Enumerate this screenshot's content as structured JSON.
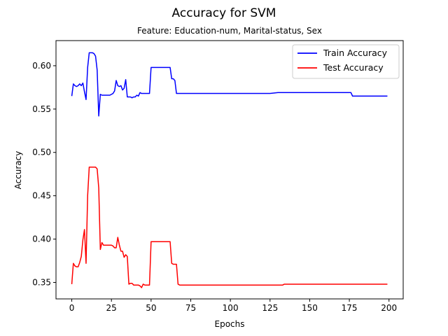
{
  "chart_data": {
    "type": "line",
    "title": "Accuracy for SVM",
    "subtitle": "Feature: Education-num, Marital-status, Sex",
    "xlabel": "Epochs",
    "ylabel": "Accuracy",
    "xlim": [
      -9.95,
      208.95
    ],
    "ylim": [
      0.331,
      0.629
    ],
    "xticks": [
      0,
      25,
      50,
      75,
      100,
      125,
      150,
      175,
      200
    ],
    "yticks": [
      0.35,
      0.4,
      0.45,
      0.5,
      0.55,
      0.6
    ],
    "ytick_labels": [
      "0.35",
      "0.40",
      "0.45",
      "0.50",
      "0.55",
      "0.60"
    ],
    "grid": false,
    "legend": "top-right",
    "series": [
      {
        "name": "Train Accuracy",
        "color": "#0000ff",
        "x": [
          0,
          1,
          2,
          3,
          4,
          5,
          6,
          7,
          8,
          9,
          10,
          11,
          12,
          13,
          14,
          15,
          16,
          17,
          18,
          19,
          20,
          21,
          22,
          23,
          24,
          25,
          26,
          27,
          28,
          29,
          30,
          31,
          32,
          33,
          34,
          35,
          36,
          37,
          38,
          39,
          40,
          41,
          42,
          43,
          44,
          45,
          46,
          47,
          48,
          49,
          50,
          51,
          52,
          53,
          54,
          55,
          56,
          57,
          58,
          59,
          60,
          61,
          62,
          63,
          64,
          65,
          66,
          67,
          68,
          70,
          75,
          80,
          90,
          100,
          110,
          115,
          120,
          125,
          130,
          135,
          140,
          150,
          160,
          170,
          175,
          176,
          177,
          180,
          190,
          199
        ],
        "values": [
          0.565,
          0.579,
          0.577,
          0.576,
          0.577,
          0.579,
          0.577,
          0.58,
          0.57,
          0.561,
          0.598,
          0.615,
          0.615,
          0.615,
          0.614,
          0.611,
          0.595,
          0.542,
          0.567,
          0.566,
          0.566,
          0.566,
          0.566,
          0.566,
          0.566,
          0.567,
          0.568,
          0.571,
          0.583,
          0.577,
          0.576,
          0.577,
          0.572,
          0.574,
          0.584,
          0.564,
          0.564,
          0.564,
          0.563,
          0.564,
          0.564,
          0.566,
          0.565,
          0.569,
          0.568,
          0.568,
          0.568,
          0.568,
          0.568,
          0.568,
          0.598,
          0.598,
          0.598,
          0.598,
          0.598,
          0.598,
          0.598,
          0.598,
          0.598,
          0.598,
          0.598,
          0.598,
          0.598,
          0.585,
          0.585,
          0.583,
          0.568,
          0.568,
          0.568,
          0.568,
          0.568,
          0.568,
          0.568,
          0.568,
          0.568,
          0.568,
          0.568,
          0.568,
          0.569,
          0.569,
          0.569,
          0.569,
          0.569,
          0.569,
          0.569,
          0.569,
          0.565,
          0.565,
          0.565,
          0.565
        ]
      },
      {
        "name": "Test Accuracy",
        "color": "#ff0000",
        "x": [
          0,
          1,
          2,
          3,
          4,
          5,
          6,
          7,
          8,
          9,
          10,
          11,
          12,
          13,
          14,
          15,
          16,
          17,
          18,
          19,
          20,
          21,
          22,
          23,
          24,
          25,
          26,
          27,
          28,
          29,
          30,
          31,
          32,
          33,
          34,
          35,
          36,
          37,
          38,
          39,
          40,
          41,
          42,
          43,
          44,
          45,
          46,
          47,
          48,
          49,
          50,
          51,
          52,
          53,
          54,
          55,
          56,
          57,
          58,
          59,
          60,
          61,
          62,
          63,
          64,
          65,
          66,
          67,
          68,
          70,
          80,
          100,
          120,
          130,
          133,
          134,
          140,
          160,
          180,
          199
        ],
        "values": [
          0.348,
          0.372,
          0.369,
          0.368,
          0.368,
          0.373,
          0.38,
          0.399,
          0.411,
          0.372,
          0.45,
          0.483,
          0.483,
          0.483,
          0.483,
          0.483,
          0.481,
          0.459,
          0.388,
          0.396,
          0.393,
          0.393,
          0.393,
          0.393,
          0.393,
          0.393,
          0.392,
          0.39,
          0.39,
          0.402,
          0.393,
          0.386,
          0.386,
          0.379,
          0.382,
          0.38,
          0.348,
          0.349,
          0.349,
          0.347,
          0.347,
          0.347,
          0.347,
          0.346,
          0.344,
          0.348,
          0.347,
          0.347,
          0.347,
          0.347,
          0.397,
          0.397,
          0.397,
          0.397,
          0.397,
          0.397,
          0.397,
          0.397,
          0.397,
          0.397,
          0.397,
          0.397,
          0.397,
          0.372,
          0.371,
          0.371,
          0.371,
          0.348,
          0.347,
          0.347,
          0.347,
          0.347,
          0.347,
          0.347,
          0.347,
          0.348,
          0.348,
          0.348,
          0.348,
          0.348
        ]
      }
    ]
  }
}
